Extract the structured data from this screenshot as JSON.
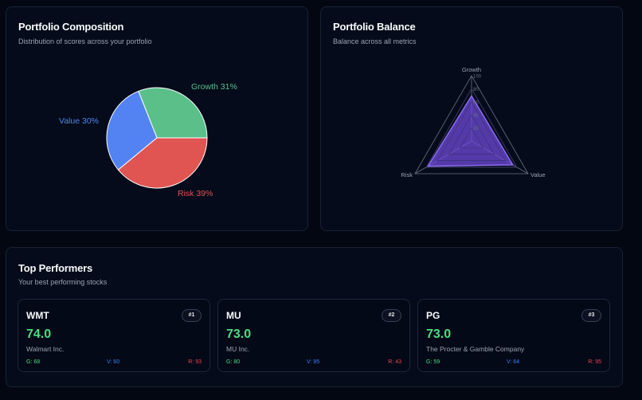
{
  "composition": {
    "title": "Portfolio Composition",
    "subtitle": "Distribution of scores across your portfolio"
  },
  "balance": {
    "title": "Portfolio Balance",
    "subtitle": "Balance across all metrics"
  },
  "top": {
    "title": "Top Performers",
    "subtitle": "Your best performing stocks",
    "cards": [
      {
        "ticker": "WMT",
        "rank": "#1",
        "score": "74.0",
        "company": "Walmart Inc.",
        "g": "G: 68",
        "v": "V: 60",
        "r": "R: 93"
      },
      {
        "ticker": "MU",
        "rank": "#2",
        "score": "73.0",
        "company": "MU Inc.",
        "g": "G: 80",
        "v": "V: 95",
        "r": "R: 43"
      },
      {
        "ticker": "PG",
        "rank": "#3",
        "score": "73.0",
        "company": "The Procter & Gamble Company",
        "g": "G: 59",
        "v": "V: 64",
        "r": "R: 95"
      }
    ]
  },
  "chart_data": [
    {
      "type": "pie",
      "slices": [
        {
          "label": "Growth 31%",
          "name": "Growth",
          "value": 31,
          "color": "#5bbf8a"
        },
        {
          "label": "Risk 39%",
          "name": "Risk",
          "value": 39,
          "color": "#e05452"
        },
        {
          "label": "Value 30%",
          "name": "Value",
          "value": 30,
          "color": "#5383f2"
        }
      ]
    },
    {
      "type": "radar",
      "axes": [
        "Growth",
        "Value",
        "Risk"
      ],
      "ticks": [
        "100",
        "80",
        "60",
        "40",
        "20"
      ],
      "range": [
        0,
        100
      ],
      "series": [
        {
          "values": [
            69,
            73,
            77
          ],
          "color": "#6d4bd8"
        }
      ]
    }
  ]
}
